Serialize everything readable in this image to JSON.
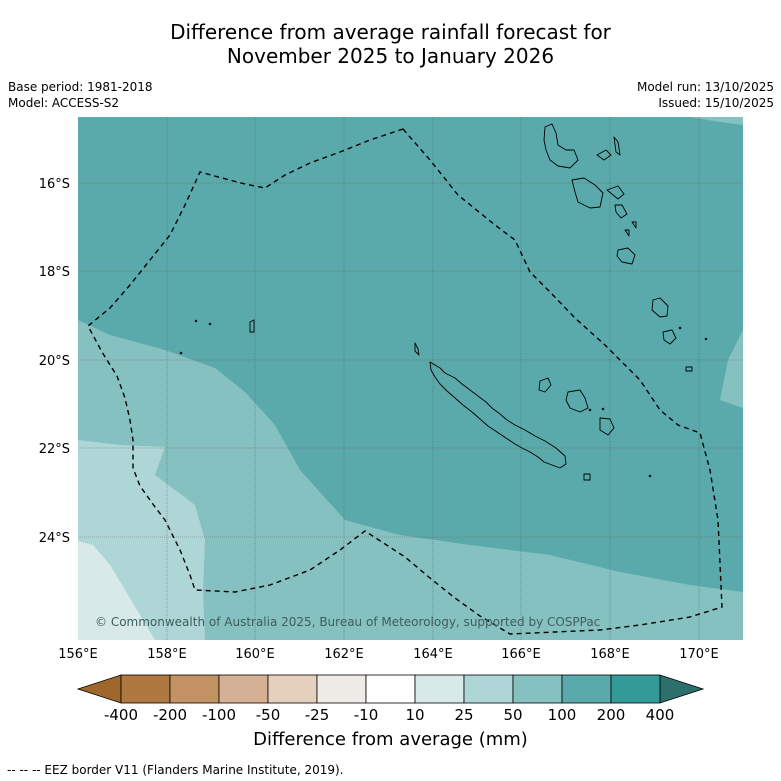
{
  "title": {
    "line1": "Difference from average rainfall forecast for",
    "line2": "November 2025 to January 2026"
  },
  "meta_left": {
    "base_period": "Base period: 1981-2018",
    "model": "Model: ACCESS-S2"
  },
  "meta_right": {
    "model_run": "Model run: 13/10/2025",
    "issued": "Issued: 15/10/2025"
  },
  "map": {
    "lat_labels": [
      "16°S",
      "18°S",
      "20°S",
      "22°S",
      "24°S"
    ],
    "lon_labels": [
      "156°E",
      "158°E",
      "160°E",
      "162°E",
      "164°E",
      "166°E",
      "168°E",
      "170°E"
    ],
    "copyright": "© Commonwealth of Australia 2025, Bureau of Meteorology, supported by COSPPac",
    "colors": {
      "c50_100": "#85c1c0",
      "c100_200": "#5aaaab",
      "c25_50": "#afd6d6",
      "c10_25": "#d7eae9"
    }
  },
  "colorbar": {
    "ticks": [
      "-400",
      "-200",
      "-100",
      "-50",
      "-25",
      "-10",
      "10",
      "25",
      "50",
      "100",
      "200",
      "400"
    ],
    "colors": [
      "#b07841",
      "#c39264",
      "#d4b194",
      "#e5d0be",
      "#efebe7",
      "#ffffff",
      "#d7eae9",
      "#afd6d6",
      "#85c1c0",
      "#5aaaab",
      "#349a98"
    ],
    "under_color": "#a0672d",
    "over_color": "#2d6f6b",
    "title": "Difference from average (mm)"
  },
  "footer": "--  --  -- EEZ border V11 (Flanders Marine Institute, 2019)."
}
